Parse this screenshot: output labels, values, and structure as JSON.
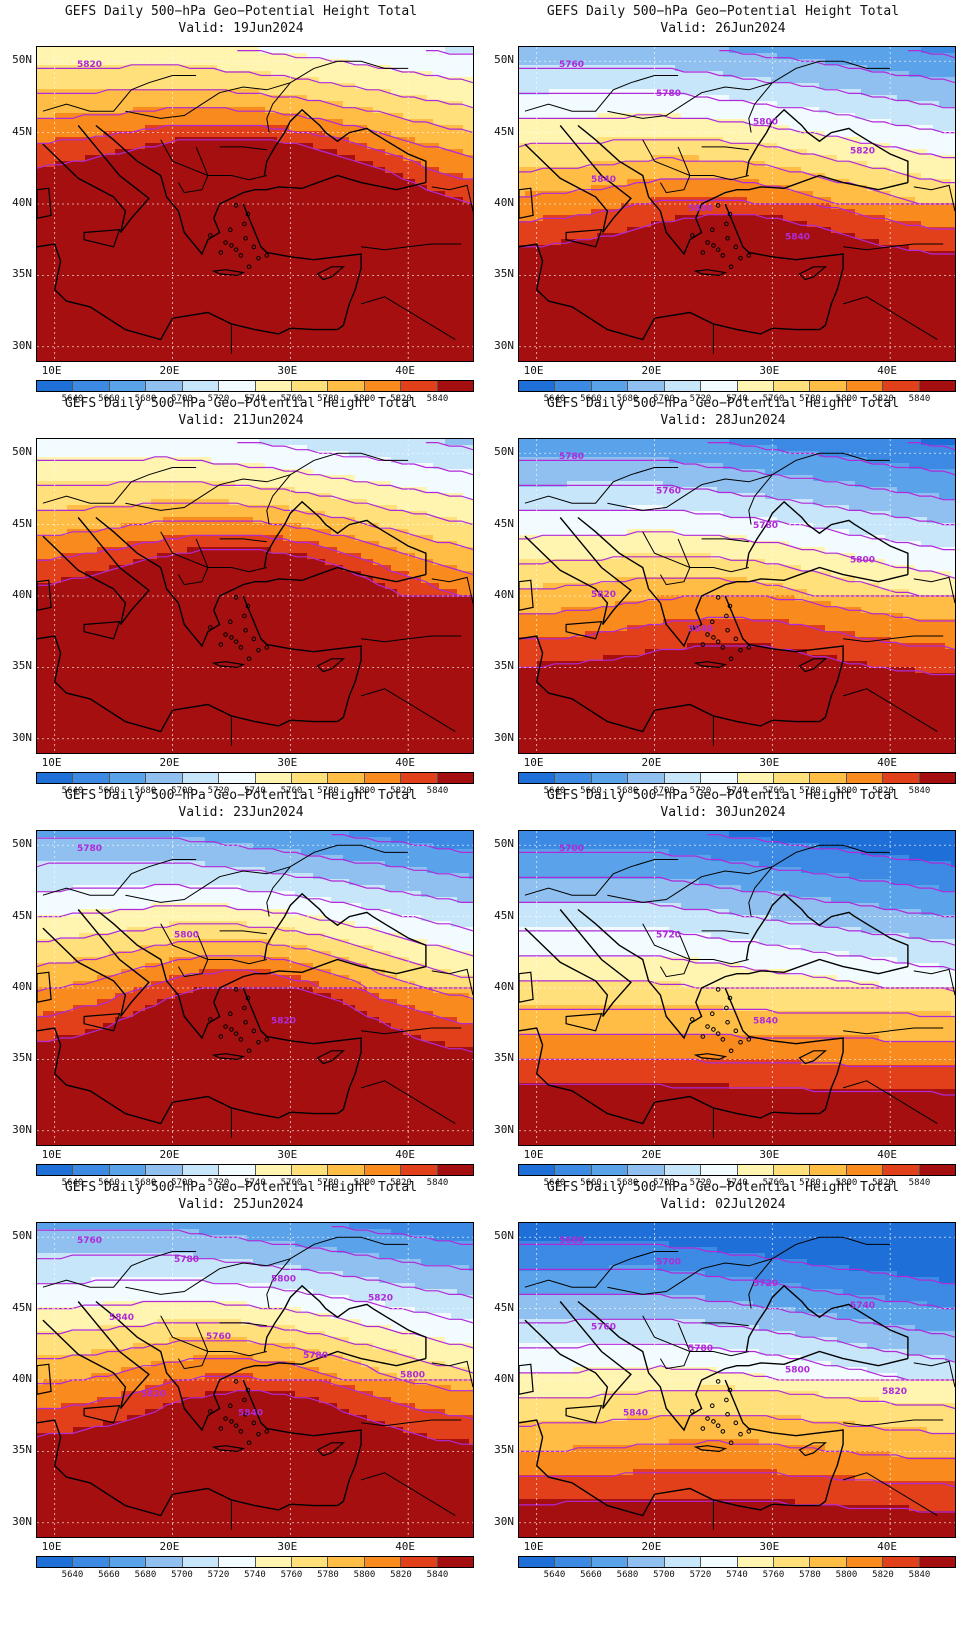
{
  "panel_title": "GEFS Daily 500−hPa Geo−Potential Height Total",
  "valid_prefix": "Valid:",
  "lat_labels": [
    "50N",
    "45N",
    "40N",
    "35N",
    "30N"
  ],
  "lon_labels": [
    "10E",
    "20E",
    "30E",
    "40E"
  ],
  "colorbar": {
    "levels": [
      "5640",
      "5660",
      "5680",
      "5700",
      "5720",
      "5740",
      "5760",
      "5780",
      "5800",
      "5820",
      "5840"
    ],
    "colors": [
      "#1f6fd8",
      "#3d8ae4",
      "#5aa2ea",
      "#8fc0ef",
      "#c7e6fa",
      "#f2fbff",
      "#fff4b0",
      "#ffe07a",
      "#ffbd45",
      "#f88a1e",
      "#e2401a",
      "#a50f0f"
    ]
  },
  "colors": {
    "contour": "#b02ad8",
    "land_border": "#000000",
    "grid": "#ffffff"
  },
  "panels": [
    {
      "valid": "19Jun2024",
      "labels": [
        "5820"
      ],
      "ridge": 5.0,
      "bias": 2.0
    },
    {
      "valid": "26Jun2024",
      "labels": [
        "5760",
        "5780",
        "5800",
        "5820",
        "5840",
        "5800",
        "5840"
      ],
      "ridge": 1.5,
      "bias": -1.0
    },
    {
      "valid": "21Jun2024",
      "labels": [],
      "ridge": 4.0,
      "bias": 1.0
    },
    {
      "valid": "28Jun2024",
      "labels": [
        "5780",
        "5760",
        "5780",
        "5800",
        "5820",
        "5840"
      ],
      "ridge": 1.0,
      "bias": -2.0
    },
    {
      "valid": "23Jun2024",
      "labels": [
        "5780",
        "5800",
        "5820"
      ],
      "ridge": 3.0,
      "bias": -1.5
    },
    {
      "valid": "30Jun2024",
      "labels": [
        "5700",
        "5720",
        "5840"
      ],
      "ridge": 0.0,
      "bias": -3.0
    },
    {
      "valid": "25Jun2024",
      "labels": [
        "5760",
        "5780",
        "5800",
        "5820",
        "5840",
        "5760",
        "5780",
        "5800",
        "5820",
        "5840"
      ],
      "ridge": 2.0,
      "bias": -1.5
    },
    {
      "valid": "02Jul2024",
      "labels": [
        "5680",
        "5700",
        "5720",
        "5740",
        "5760",
        "5780",
        "5800",
        "5820",
        "5840"
      ],
      "ridge": 0.5,
      "bias": -4.0
    }
  ]
}
